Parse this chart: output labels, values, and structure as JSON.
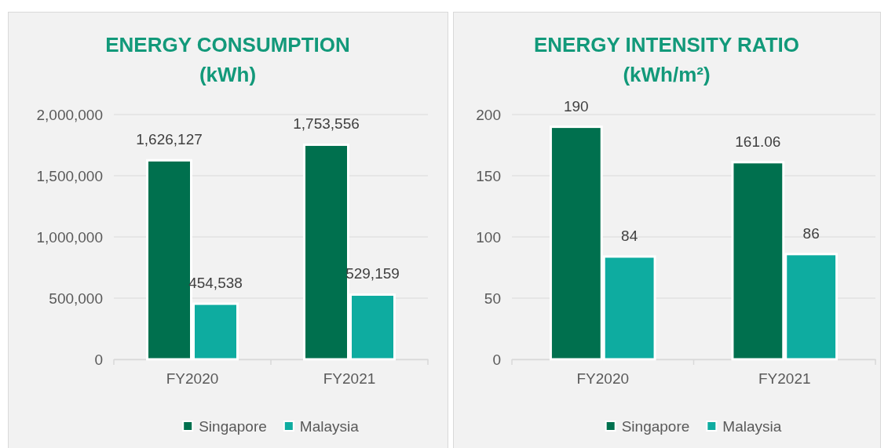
{
  "chart_data": [
    {
      "type": "bar",
      "title": "ENERGY CONSUMPTION\n(kWh)",
      "categories": [
        "FY2020",
        "FY2021"
      ],
      "series": [
        {
          "name": "Singapore",
          "color": "#00704e",
          "values": [
            1626127,
            1753556
          ],
          "value_labels": [
            "1,626,127",
            "1,753,556"
          ]
        },
        {
          "name": "Malaysia",
          "color": "#0eaca0",
          "values": [
            454538,
            529159
          ],
          "value_labels": [
            "454,538",
            "529,159"
          ]
        }
      ],
      "ylim": [
        0,
        2000000
      ],
      "yticks": [
        {
          "value": 0,
          "label": "0"
        },
        {
          "value": 500000,
          "label": "500,000"
        },
        {
          "value": 1000000,
          "label": "1,000,000"
        },
        {
          "value": 1500000,
          "label": "1,500,000"
        },
        {
          "value": 2000000,
          "label": "2,000,000"
        }
      ],
      "grid": "y",
      "legend": "bottom"
    },
    {
      "type": "bar",
      "title": "ENERGY INTENSITY RATIO\n(kWh/m²)",
      "categories": [
        "FY2020",
        "FY2021"
      ],
      "series": [
        {
          "name": "Singapore",
          "color": "#00704e",
          "values": [
            190,
            161.06
          ]
        },
        {
          "name": "Malaysia",
          "color": "#0eaca0",
          "values": [
            84,
            86
          ]
        }
      ],
      "ylim": [
        0,
        200
      ],
      "yticks": [
        0,
        50,
        100,
        150,
        200
      ],
      "grid": "y",
      "legend": "bottom",
      "data_labels": true
    }
  ]
}
